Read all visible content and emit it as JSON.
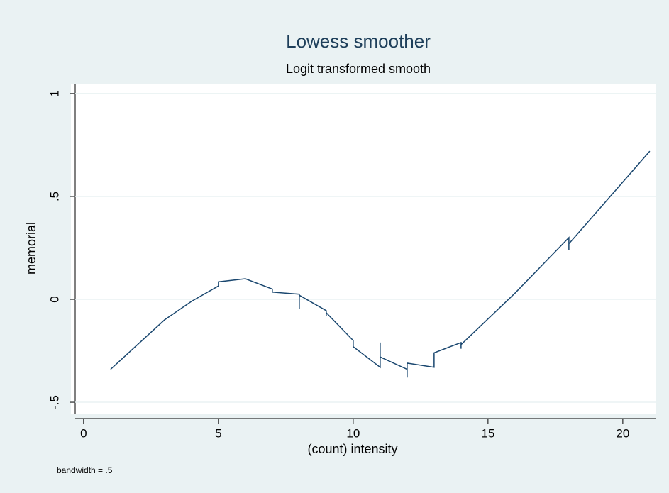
{
  "chart_data": {
    "type": "line",
    "title": "Lowess smoother",
    "subtitle": "Logit transformed smooth",
    "xlabel": "(count) intensity",
    "ylabel": "memorial",
    "note": "bandwidth = .5",
    "x": [
      1,
      2,
      3,
      4,
      5,
      5,
      6,
      7,
      7,
      8,
      8,
      8,
      9,
      9,
      9,
      10,
      10,
      11,
      11,
      11,
      12,
      12,
      12,
      13,
      13,
      14,
      14,
      14,
      16,
      18,
      18,
      18,
      21
    ],
    "values": [
      -0.34,
      -0.22,
      -0.1,
      -0.01,
      0.065,
      0.085,
      0.1,
      0.05,
      0.035,
      0.025,
      -0.045,
      0.02,
      -0.055,
      -0.08,
      -0.065,
      -0.2,
      -0.23,
      -0.33,
      -0.21,
      -0.28,
      -0.34,
      -0.38,
      -0.31,
      -0.33,
      -0.26,
      -0.21,
      -0.24,
      -0.22,
      0.03,
      0.3,
      0.24,
      0.27,
      0.72
    ],
    "color": "#1a476f",
    "xlim": [
      -0.47,
      21.24
    ],
    "ylim": [
      -0.555,
      1.048
    ],
    "xticks": [
      0,
      5,
      10,
      15,
      20
    ],
    "yticks": [
      {
        "value": -0.5,
        "label": "-.5"
      },
      0,
      {
        "value": 0.5,
        "label": ".5"
      },
      1
    ],
    "grid": true
  }
}
